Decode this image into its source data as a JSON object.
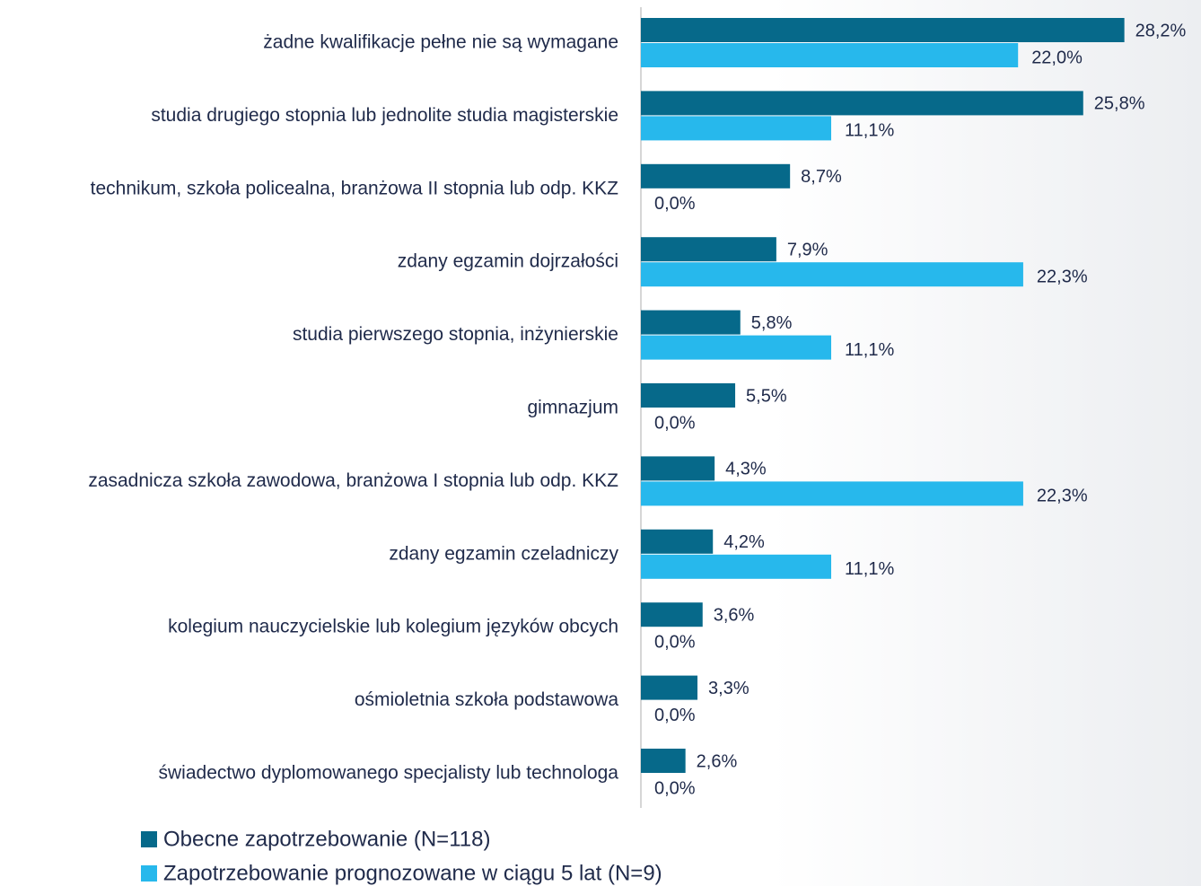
{
  "chart_data": {
    "type": "bar",
    "orientation": "horizontal",
    "categories": [
      "żadne kwalifikacje pełne nie są wymagane",
      "studia drugiego stopnia lub jednolite studia magisterskie",
      "technikum, szkoła policealna, branżowa II stopnia lub odp. KKZ",
      "zdany egzamin dojrzałości",
      "studia pierwszego stopnia, inżynierskie",
      "gimnazjum",
      "zasadnicza szkoła zawodowa, branżowa I stopnia  lub odp. KKZ",
      "zdany egzamin czeladniczy",
      "kolegium nauczycielskie lub kolegium języków obcych",
      "ośmioletnia szkoła podstawowa",
      "świadectwo dyplomowanego specjalisty lub technologa"
    ],
    "series": [
      {
        "name": "Obecne zapotrzebowanie (N=118)",
        "color": "#06698a",
        "values": [
          28.2,
          25.8,
          8.7,
          7.9,
          5.8,
          5.5,
          4.3,
          4.2,
          3.6,
          3.3,
          2.6
        ],
        "value_labels": [
          "28,2%",
          "25,8%",
          "8,7%",
          "7,9%",
          "5,8%",
          "5,5%",
          "4,3%",
          "4,2%",
          "3,6%",
          "3,3%",
          "2,6%"
        ]
      },
      {
        "name": "Zapotrzebowanie prognozowane w ciągu 5 lat (N=9)",
        "color": "#27b8ec",
        "values": [
          22.0,
          11.1,
          0.0,
          22.3,
          11.1,
          0.0,
          22.3,
          11.1,
          0.0,
          0.0,
          0.0
        ],
        "value_labels": [
          "22,0%",
          "11,1%",
          "0,0%",
          "22,3%",
          "11,1%",
          "0,0%",
          "22,3%",
          "11,1%",
          "0,0%",
          "0,0%",
          "0,0%"
        ]
      }
    ],
    "xlim": [
      0,
      30
    ]
  }
}
